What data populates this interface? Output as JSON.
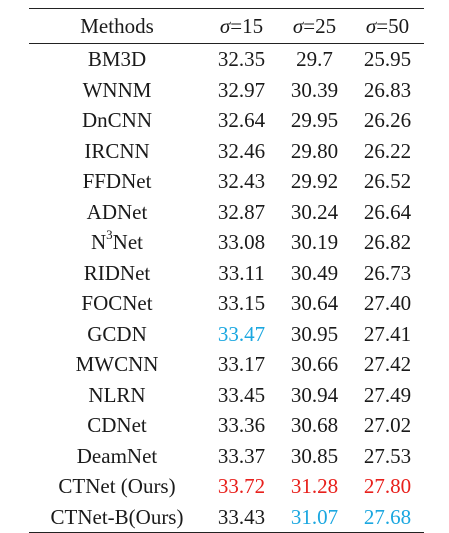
{
  "colors": {
    "best": "#e8201c",
    "second": "#1ba7e0",
    "normal": "#1a1a1a"
  },
  "header": {
    "method": "Methods",
    "sigma_symbol": "σ",
    "levels": [
      "=15",
      "=25",
      "=50"
    ]
  },
  "rows": [
    {
      "method": "BM3D",
      "sup": "",
      "values": [
        "32.35",
        "29.7",
        "25.95"
      ],
      "ranks": [
        "",
        "",
        ""
      ]
    },
    {
      "method": "WNNM",
      "sup": "",
      "values": [
        "32.97",
        "30.39",
        "26.83"
      ],
      "ranks": [
        "",
        "",
        ""
      ]
    },
    {
      "method": "DnCNN",
      "sup": "",
      "values": [
        "32.64",
        "29.95",
        "26.26"
      ],
      "ranks": [
        "",
        "",
        ""
      ]
    },
    {
      "method": "IRCNN",
      "sup": "",
      "values": [
        "32.46",
        "29.80",
        "26.22"
      ],
      "ranks": [
        "",
        "",
        ""
      ]
    },
    {
      "method": "FFDNet",
      "sup": "",
      "values": [
        "32.43",
        "29.92",
        "26.52"
      ],
      "ranks": [
        "",
        "",
        ""
      ]
    },
    {
      "method": "ADNet",
      "sup": "",
      "values": [
        "32.87",
        "30.24",
        "26.64"
      ],
      "ranks": [
        "",
        "",
        ""
      ]
    },
    {
      "method": "N",
      "sup": "3",
      "method_tail": "Net",
      "values": [
        "33.08",
        "30.19",
        "26.82"
      ],
      "ranks": [
        "",
        "",
        ""
      ]
    },
    {
      "method": "RIDNet",
      "sup": "",
      "values": [
        "33.11",
        "30.49",
        "26.73"
      ],
      "ranks": [
        "",
        "",
        ""
      ]
    },
    {
      "method": "FOCNet",
      "sup": "",
      "values": [
        "33.15",
        "30.64",
        "27.40"
      ],
      "ranks": [
        "",
        "",
        ""
      ]
    },
    {
      "method": "GCDN",
      "sup": "",
      "values": [
        "33.47",
        "30.95",
        "27.41"
      ],
      "ranks": [
        "second",
        "",
        ""
      ]
    },
    {
      "method": "MWCNN",
      "sup": "",
      "values": [
        "33.17",
        "30.66",
        "27.42"
      ],
      "ranks": [
        "",
        "",
        ""
      ]
    },
    {
      "method": "NLRN",
      "sup": "",
      "values": [
        "33.45",
        "30.94",
        "27.49"
      ],
      "ranks": [
        "",
        "",
        ""
      ]
    },
    {
      "method": "CDNet",
      "sup": "",
      "values": [
        "33.36",
        "30.68",
        "27.02"
      ],
      "ranks": [
        "",
        "",
        ""
      ]
    },
    {
      "method": "DeamNet",
      "sup": "",
      "values": [
        "33.37",
        "30.85",
        "27.53"
      ],
      "ranks": [
        "",
        "",
        ""
      ]
    },
    {
      "method": "CTNet (Ours)",
      "sup": "",
      "values": [
        "33.72",
        "31.28",
        "27.80"
      ],
      "ranks": [
        "best",
        "best",
        "best"
      ]
    },
    {
      "method": "CTNet-B(Ours)",
      "sup": "",
      "values": [
        "33.43",
        "31.07",
        "27.68"
      ],
      "ranks": [
        "",
        "second",
        "second"
      ]
    }
  ]
}
